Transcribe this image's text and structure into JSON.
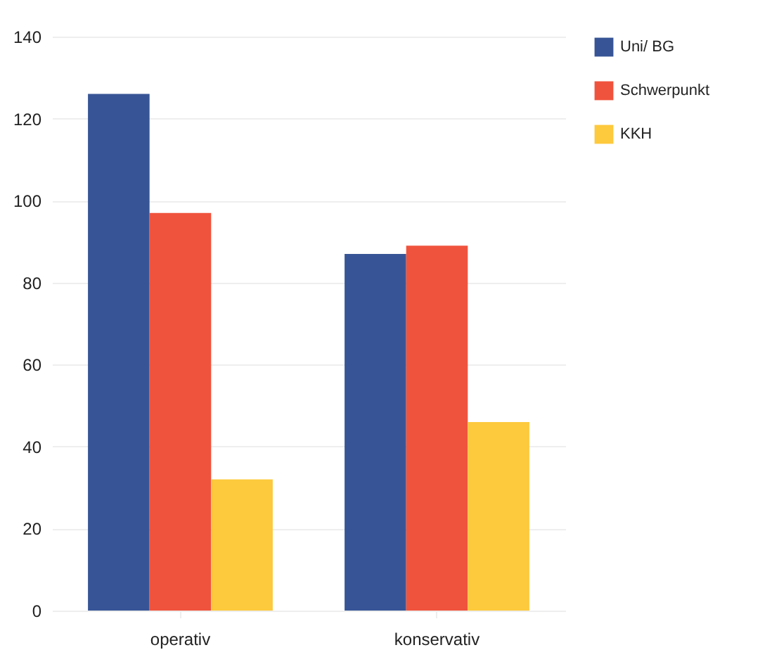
{
  "chart_data": {
    "type": "bar",
    "categories": [
      "operativ",
      "konservativ"
    ],
    "series": [
      {
        "name": "Uni/ BG",
        "color": "#375596",
        "values": [
          126,
          87
        ]
      },
      {
        "name": "Schwerpunkt",
        "color": "#f0533d",
        "values": [
          97,
          89
        ]
      },
      {
        "name": "KKH",
        "color": "#fdc93d",
        "values": [
          32,
          46
        ]
      }
    ],
    "ylim": [
      0,
      140
    ],
    "yticks": [
      0,
      20,
      40,
      60,
      80,
      100,
      120,
      140
    ],
    "grid": "y",
    "legend": "right"
  }
}
